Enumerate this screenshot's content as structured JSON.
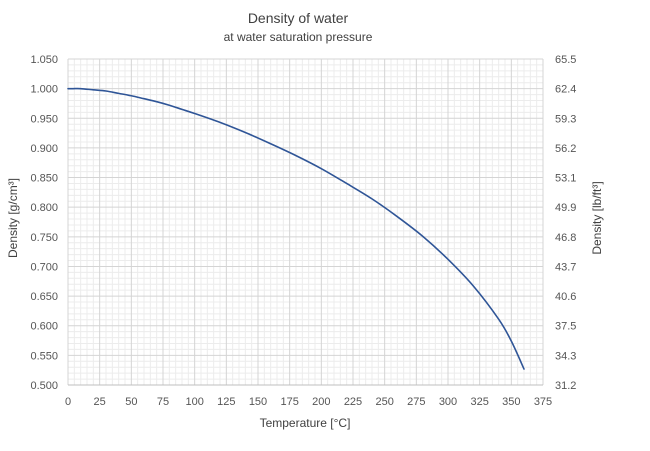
{
  "chart_data": {
    "type": "line",
    "title": "Density of water",
    "subtitle": "at water saturation pressure",
    "xlabel": "Temperature [°C]",
    "ylabel": "Density  [g/cm³]",
    "y2label": "Density   [lb/ft³]",
    "xlim": [
      0,
      375
    ],
    "ylim": [
      0.5,
      1.05
    ],
    "x_ticks": [
      0,
      25,
      50,
      75,
      100,
      125,
      150,
      175,
      200,
      225,
      250,
      275,
      300,
      325,
      350,
      375
    ],
    "y_ticks": [
      0.5,
      0.55,
      0.6,
      0.65,
      0.7,
      0.75,
      0.8,
      0.85,
      0.9,
      0.95,
      1.0,
      1.05
    ],
    "y_tick_labels": [
      "0.500",
      "0.550",
      "0.600",
      "0.650",
      "0.700",
      "0.750",
      "0.800",
      "0.850",
      "0.900",
      "0.950",
      "1.000",
      "1.050"
    ],
    "y2_tick_labels": [
      "31.2",
      "34.3",
      "37.5",
      "40.6",
      "43.7",
      "46.8",
      "49.9",
      "53.1",
      "56.2",
      "59.3",
      "62.4",
      "65.5"
    ],
    "grid": true,
    "line_color": "#2f5597",
    "series": [
      {
        "name": "Density",
        "x": [
          0,
          4,
          10,
          20,
          30,
          40,
          50,
          60,
          70,
          80,
          90,
          100,
          120,
          140,
          160,
          180,
          200,
          220,
          240,
          260,
          280,
          300,
          320,
          340,
          350,
          360
        ],
        "values": [
          1.0,
          1.0,
          1.0,
          0.998,
          0.996,
          0.992,
          0.988,
          0.983,
          0.978,
          0.972,
          0.965,
          0.958,
          0.943,
          0.926,
          0.907,
          0.887,
          0.865,
          0.84,
          0.814,
          0.784,
          0.751,
          0.712,
          0.667,
          0.611,
          0.574,
          0.527
        ]
      }
    ]
  }
}
